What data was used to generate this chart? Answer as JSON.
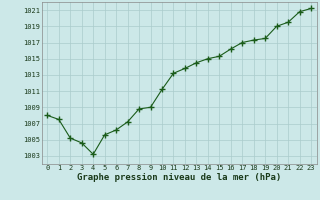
{
  "x": [
    0,
    1,
    2,
    3,
    4,
    5,
    6,
    7,
    8,
    9,
    10,
    11,
    12,
    13,
    14,
    15,
    16,
    17,
    18,
    19,
    20,
    21,
    22,
    23
  ],
  "y": [
    1008.0,
    1007.5,
    1005.2,
    1004.6,
    1003.2,
    1005.6,
    1006.2,
    1007.2,
    1008.8,
    1009.0,
    1011.2,
    1013.2,
    1013.8,
    1014.5,
    1015.0,
    1015.3,
    1016.2,
    1017.0,
    1017.3,
    1017.5,
    1019.0,
    1019.5,
    1020.8,
    1021.2
  ],
  "line_color": "#1a5c1a",
  "marker": "+",
  "marker_size": 4,
  "bg_color": "#cce8e8",
  "grid_color": "#aacccc",
  "xlabel": "Graphe pression niveau de la mer (hPa)",
  "ylim": [
    1002,
    1022
  ],
  "xlim_min": -0.5,
  "xlim_max": 23.5,
  "yticks": [
    1003,
    1005,
    1007,
    1009,
    1011,
    1013,
    1015,
    1017,
    1019,
    1021
  ],
  "xticks": [
    0,
    1,
    2,
    3,
    4,
    5,
    6,
    7,
    8,
    9,
    10,
    11,
    12,
    13,
    14,
    15,
    16,
    17,
    18,
    19,
    20,
    21,
    22,
    23
  ],
  "xtick_labels": [
    "0",
    "1",
    "2",
    "3",
    "4",
    "5",
    "6",
    "7",
    "8",
    "9",
    "10",
    "11",
    "12",
    "13",
    "14",
    "15",
    "16",
    "17",
    "18",
    "19",
    "20",
    "21",
    "22",
    "23"
  ],
  "ytick_labels": [
    "1003",
    "1005",
    "1007",
    "1009",
    "1011",
    "1013",
    "1015",
    "1017",
    "1019",
    "1021"
  ],
  "xlabel_fontsize": 6.5,
  "xlabel_fontweight": "bold",
  "tick_fontsize": 5,
  "linewidth": 0.8,
  "marker_linewidth": 1.0
}
